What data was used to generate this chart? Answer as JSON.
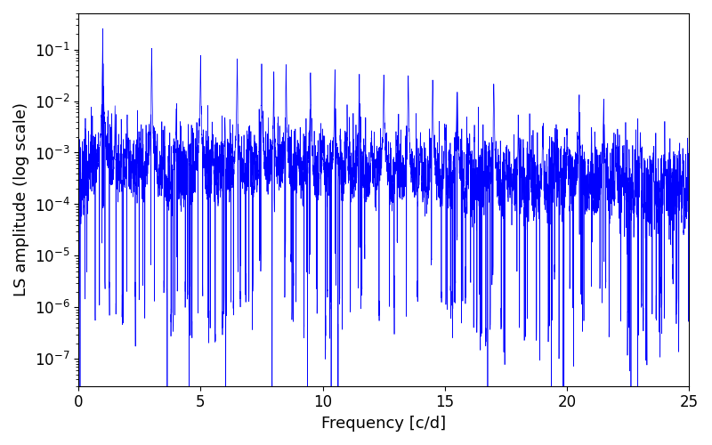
{
  "title": "",
  "xlabel": "Frequency [c/d]",
  "ylabel": "LS amplitude (log scale)",
  "xlim": [
    0,
    25
  ],
  "ylim_low": 3e-08,
  "ylim_high": 0.5,
  "line_color": "#0000ff",
  "line_width": 0.5,
  "background_color": "#ffffff",
  "seed": 12345,
  "n_points": 8000,
  "freq_max": 25.0,
  "tick_fontsize": 12,
  "label_fontsize": 13,
  "figwidth": 8.0,
  "figheight": 5.0,
  "dpi": 100
}
